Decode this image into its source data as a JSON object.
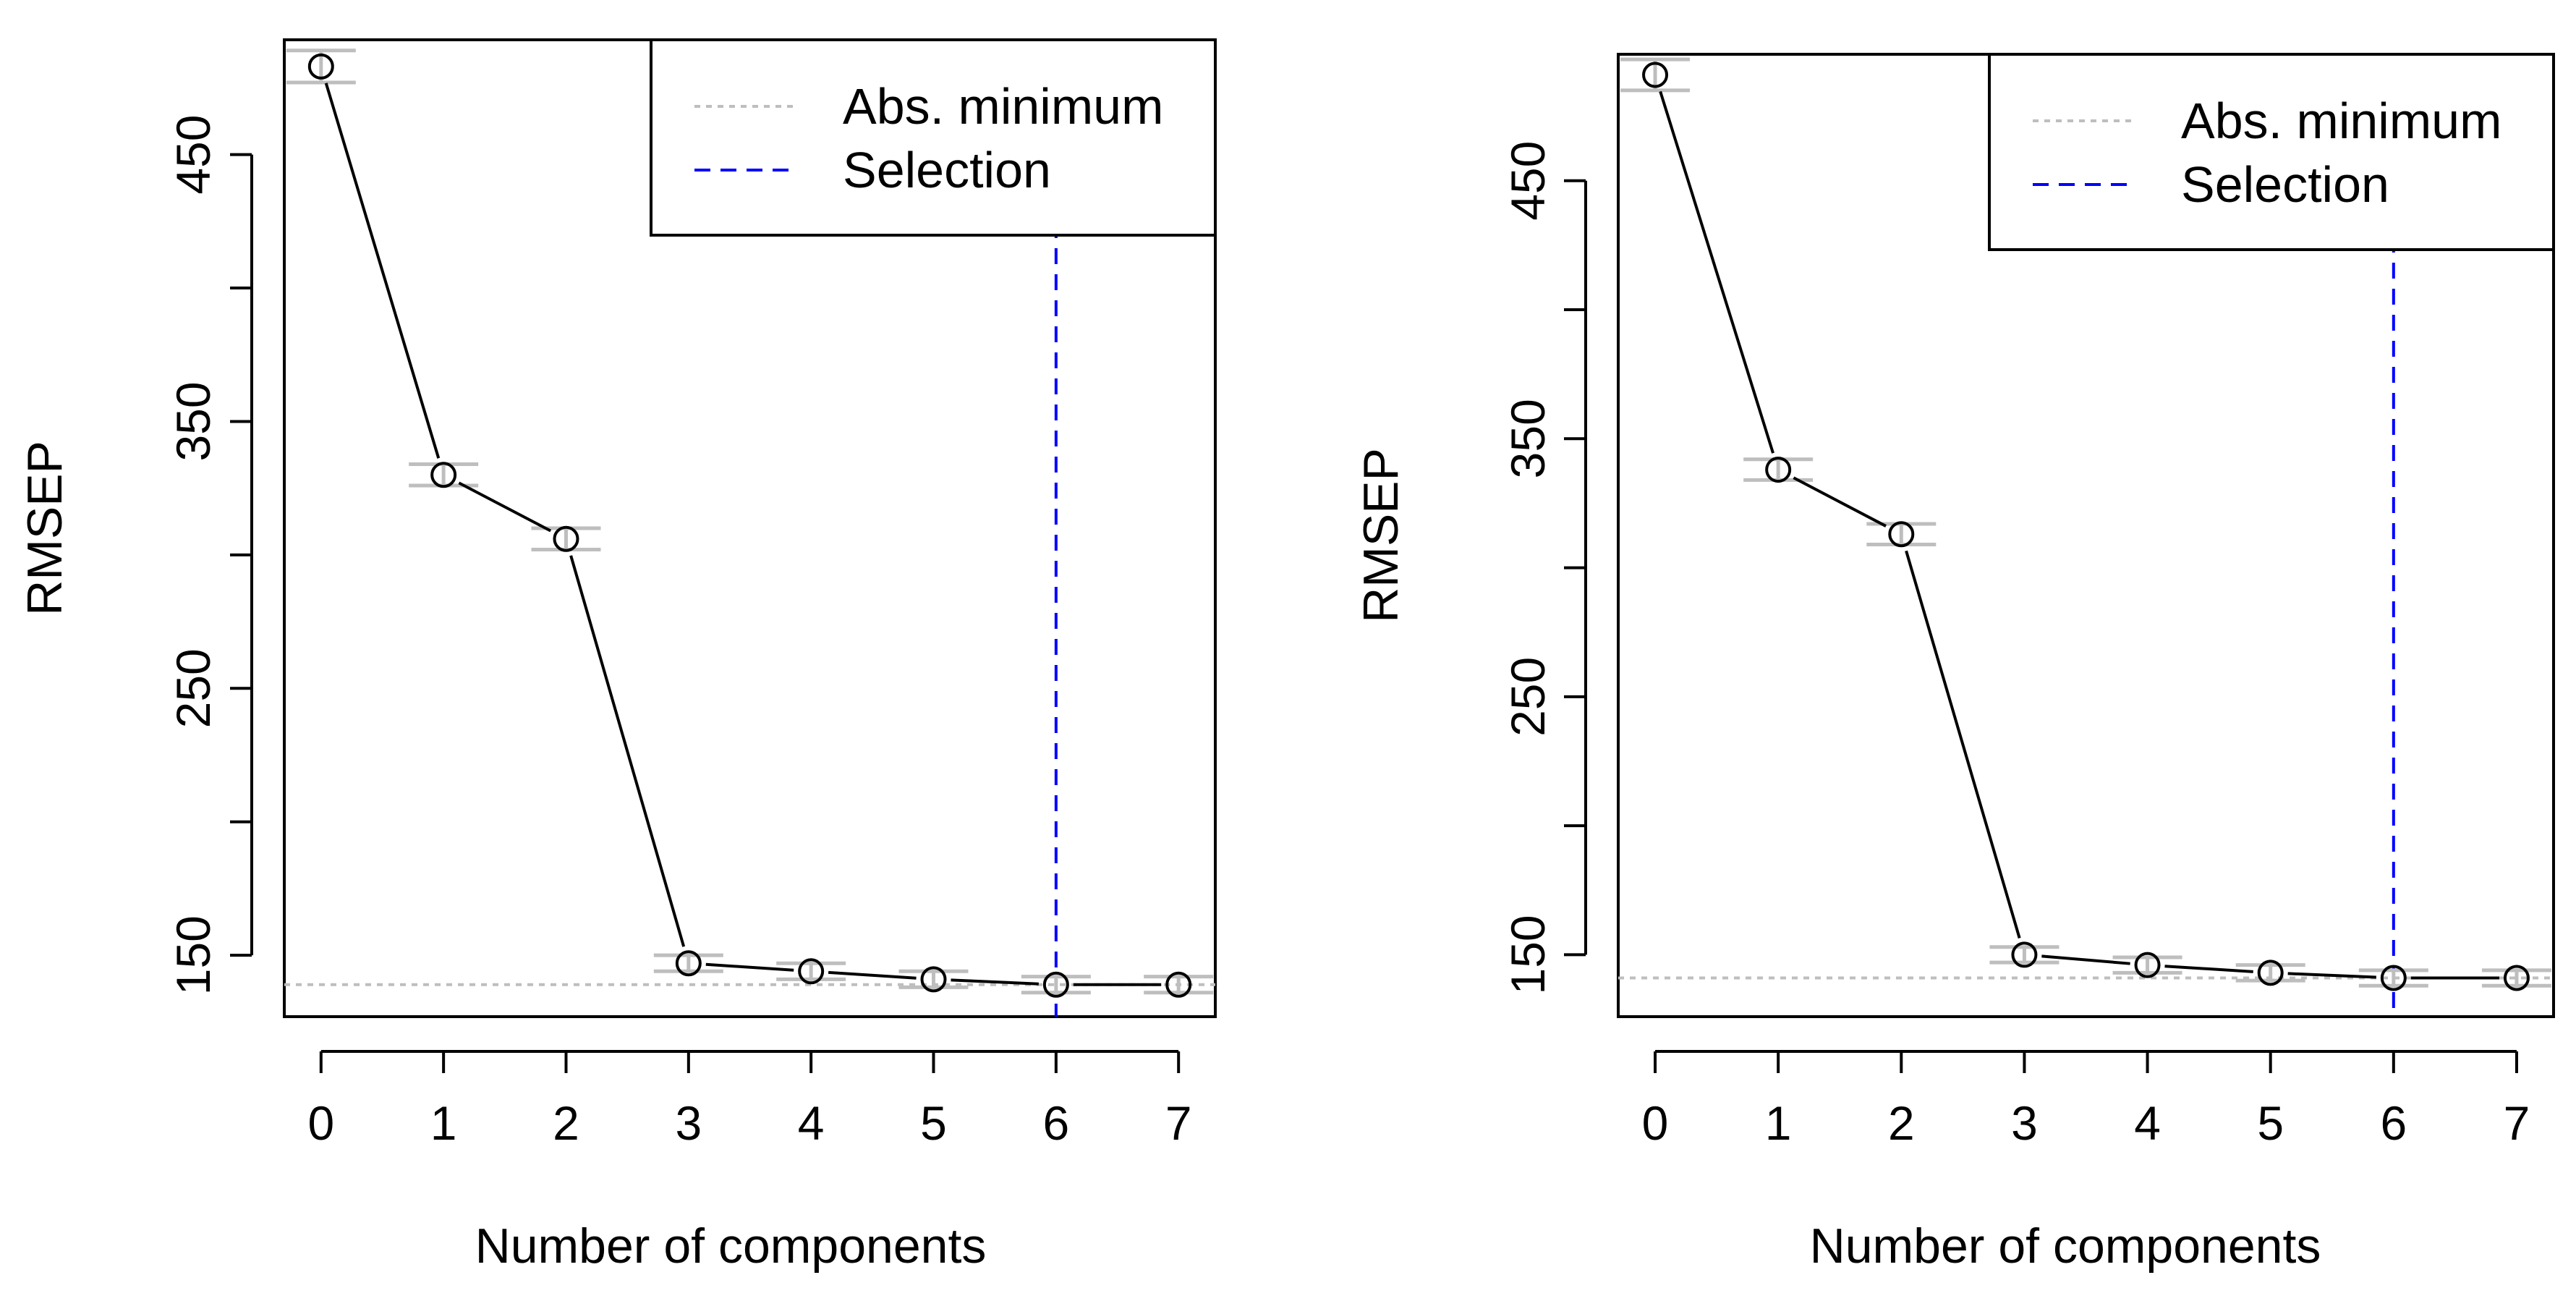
{
  "chart_data": [
    {
      "type": "line",
      "xlabel": "Number of components",
      "ylabel": "RMSEP",
      "x": [
        0,
        1,
        2,
        3,
        4,
        5,
        6,
        7
      ],
      "x_ticks": [
        "0",
        "1",
        "2",
        "3",
        "4",
        "5",
        "6",
        "7"
      ],
      "y_ticks": [
        "150",
        "250",
        "350",
        "450"
      ],
      "y_tick_values": [
        150,
        200,
        250,
        300,
        350,
        400,
        450
      ],
      "xlim": [
        -0.3,
        7.3
      ],
      "ylim": [
        127,
        493
      ],
      "series": [
        {
          "values": [
            483,
            330,
            306,
            147,
            144,
            141,
            139,
            139
          ],
          "error": [
            6,
            4,
            4,
            3,
            3,
            3,
            3,
            3
          ]
        }
      ],
      "abs_minimum": 139,
      "selection": 6,
      "legend": {
        "position": "top-right",
        "entries": [
          "Abs. minimum",
          "Selection"
        ]
      },
      "colors": {
        "line": "#000000",
        "error_bars": "#bebebe",
        "abs_minimum": "#bebebe",
        "selection": "#0000ff"
      }
    },
    {
      "type": "line",
      "xlabel": "Number of components",
      "ylabel": "RMSEP",
      "x": [
        0,
        1,
        2,
        3,
        4,
        5,
        6,
        7
      ],
      "x_ticks": [
        "0",
        "1",
        "2",
        "3",
        "4",
        "5",
        "6",
        "7"
      ],
      "y_ticks": [
        "150",
        "250",
        "350",
        "450"
      ],
      "y_tick_values": [
        150,
        200,
        250,
        300,
        350,
        400,
        450
      ],
      "xlim": [
        -0.3,
        7.3
      ],
      "ylim": [
        126,
        499
      ],
      "series": [
        {
          "values": [
            491,
            338,
            313,
            150,
            146,
            143,
            141,
            141
          ],
          "error": [
            6,
            4,
            4,
            3,
            3,
            3,
            3,
            3
          ]
        }
      ],
      "abs_minimum": 141,
      "selection": 6,
      "legend": {
        "position": "top-right",
        "entries": [
          "Abs. minimum",
          "Selection"
        ]
      },
      "colors": {
        "line": "#000000",
        "error_bars": "#bebebe",
        "abs_minimum": "#bebebe",
        "selection": "#0000ff"
      }
    }
  ]
}
